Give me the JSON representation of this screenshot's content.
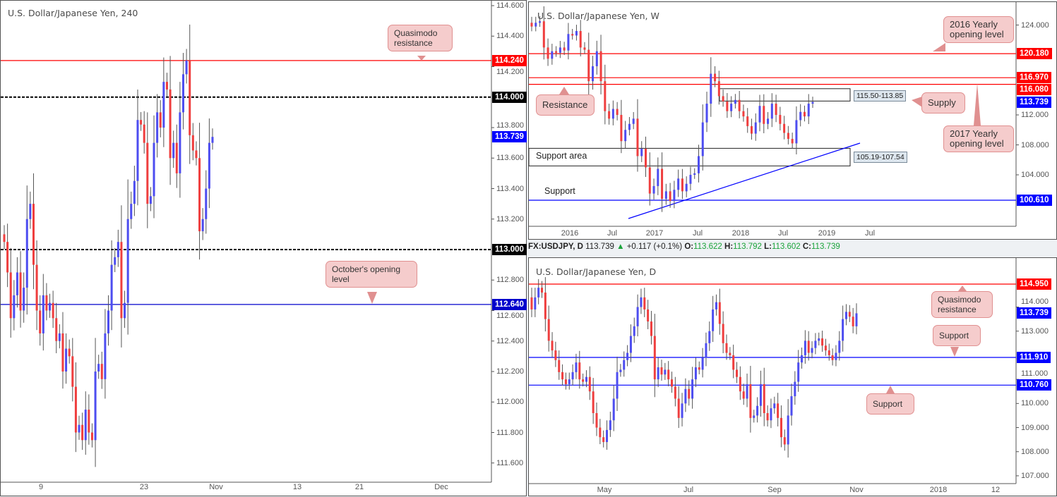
{
  "colors": {
    "up": "#4d4df0",
    "down": "#ef3e3e",
    "wick": "#555555",
    "resistance": "#ff0000",
    "support": "#0000ff",
    "level": "#000000",
    "callout_bg": "#f5cccc"
  },
  "chart_data": [
    {
      "type": "candlestick",
      "title": "U.S. Dollar/Japanese Yen, 240",
      "ylim": [
        111.5,
        114.62
      ],
      "y_ticks": [
        "114.600",
        "114.400",
        "114.200",
        "113.800",
        "113.600",
        "113.400",
        "113.200",
        "112.800",
        "112.600",
        "112.400",
        "112.200",
        "112.000",
        "111.800",
        "111.600"
      ],
      "x_ticks": [
        "9",
        "23",
        "Nov",
        "13",
        "21",
        "Dec"
      ],
      "closes": [
        113.05,
        112.85,
        112.55,
        112.7,
        112.85,
        112.6,
        112.75,
        113.2,
        113.3,
        112.9,
        112.6,
        112.45,
        112.7,
        112.6,
        112.65,
        112.55,
        112.4,
        112.45,
        112.2,
        112.35,
        112.3,
        112.1,
        111.8,
        111.85,
        111.75,
        111.95,
        111.8,
        111.75,
        112.2,
        112.25,
        112.15,
        112.45,
        112.6,
        112.9,
        112.95,
        113.05,
        112.55,
        112.65,
        113.2,
        113.3,
        113.45,
        113.85,
        113.82,
        113.7,
        113.3,
        113.35,
        113.7,
        113.9,
        113.8,
        114.1,
        114.05,
        113.6,
        113.7,
        113.5,
        113.9,
        114.15,
        114.24,
        113.75,
        113.65,
        113.6,
        113.12,
        113.2,
        113.4,
        113.7,
        113.739
      ],
      "levels": [
        {
          "value": 114.24,
          "label": "114.240",
          "style": "solid",
          "color": "#ff0000"
        },
        {
          "value": 114.0,
          "label": "114.000",
          "style": "dashed",
          "color": "#000000"
        },
        {
          "value": 113.739,
          "label": "113.739",
          "style": "none",
          "color": "#0000ff"
        },
        {
          "value": 113.0,
          "label": "113.000",
          "style": "dashed",
          "color": "#000000"
        },
        {
          "value": 112.64,
          "label": "112.640",
          "style": "solid",
          "color": "#0000cc"
        }
      ],
      "annotations": [
        "Quasimodo resistance",
        "October's opening level"
      ]
    },
    {
      "type": "candlestick",
      "title": "U.S. Dollar/Japanese Yen, W",
      "ylim": [
        96.6,
        127
      ],
      "y_ticks": [
        "124.000",
        "112.000",
        "108.000",
        "104.000"
      ],
      "x_ticks": [
        "2016",
        "Jul",
        "2017",
        "Jul",
        "2018",
        "Jul",
        "2019",
        "Jul"
      ],
      "closes": [
        123.8,
        124.3,
        124.5,
        121.0,
        119.5,
        120.5,
        120.3,
        121.0,
        120.6,
        122.8,
        122.6,
        123.2,
        121.0,
        120.7,
        116.5,
        118.5,
        120.5,
        116.5,
        112.5,
        111.5,
        112.8,
        112.0,
        108.5,
        110.0,
        110.8,
        111.5,
        106.5,
        107.5,
        105.0,
        101.5,
        102.5,
        104.8,
        100.8,
        101.8,
        100.5,
        102.0,
        103.5,
        101.8,
        102.8,
        104.0,
        104.2,
        106.5,
        111.0,
        113.5,
        117.5,
        116.5,
        114.5,
        113.8,
        112.5,
        113.5,
        114.0,
        112.5,
        111.8,
        110.5,
        109.5,
        111.0,
        113.2,
        110.8,
        111.5,
        113.5,
        112.0,
        110.8,
        109.6,
        108.8,
        108.2,
        111.3,
        112.4,
        111.8,
        113.5,
        113.739
      ],
      "levels": [
        {
          "value": 120.18,
          "label": "120.180",
          "style": "solid",
          "color": "#ff0000"
        },
        {
          "value": 116.97,
          "label": "116.970",
          "style": "solid",
          "color": "#ff0000"
        },
        {
          "value": 116.08,
          "label": "116.080",
          "style": "solid",
          "color": "#ff0000"
        },
        {
          "value": 113.739,
          "label": "113.739",
          "style": "none",
          "color": "#0000ff"
        },
        {
          "value": 100.61,
          "label": "100.610",
          "style": "solid",
          "color": "#0000ff"
        }
      ],
      "zones": [
        {
          "label": "115.50-113.85",
          "top": 115.5,
          "bottom": 113.85
        },
        {
          "label": "105.19-107.54",
          "top": 107.54,
          "bottom": 105.19
        }
      ],
      "annotations": [
        "2016 Yearly opening level",
        "2017 Yearly opening level",
        "Resistance",
        "Supply",
        "Support area",
        "Support"
      ]
    },
    {
      "type": "candlestick",
      "title": "U.S. Dollar/Japanese Yen, D",
      "ylim": [
        106.8,
        115.8
      ],
      "y_ticks": [
        "114.000",
        "113.000",
        "111.000",
        "110.000",
        "109.000",
        "108.000",
        "107.000"
      ],
      "x_ticks": [
        "May",
        "Jul",
        "Sep",
        "Nov",
        "2018",
        "12"
      ],
      "closes": [
        113.9,
        114.4,
        114.8,
        114.6,
        113.5,
        112.6,
        112.2,
        111.8,
        111.3,
        111.0,
        110.8,
        111.0,
        111.3,
        111.7,
        111.0,
        110.9,
        111.1,
        110.5,
        109.6,
        109.0,
        108.6,
        108.4,
        108.9,
        109.3,
        110.2,
        111.3,
        111.4,
        111.8,
        112.1,
        112.8,
        113.2,
        114.0,
        114.4,
        113.9,
        113.4,
        112.8,
        111.0,
        111.5,
        111.2,
        111.4,
        111.0,
        110.7,
        110.2,
        109.4,
        110.0,
        110.6,
        110.2,
        111.0,
        111.5,
        111.4,
        111.9,
        112.5,
        113.0,
        113.9,
        114.2,
        113.3,
        112.5,
        112.1,
        112.0,
        111.4,
        111.1,
        110.5,
        110.2,
        110.8,
        109.4,
        109.5,
        109.9,
        110.8,
        109.6,
        109.3,
        109.8,
        110.0,
        109.4,
        108.6,
        108.3,
        109.5,
        110.3,
        110.9,
        111.7,
        112.0,
        112.6,
        112.1,
        112.3,
        112.6,
        112.7,
        112.4,
        112.2,
        112.0,
        111.8,
        112.1,
        112.6,
        113.5,
        113.8,
        113.6,
        113.2,
        113.739
      ],
      "levels": [
        {
          "value": 114.95,
          "label": "114.950",
          "style": "solid",
          "color": "#ff0000"
        },
        {
          "value": 113.739,
          "label": "113.739",
          "style": "none",
          "color": "#0000ff"
        },
        {
          "value": 111.91,
          "label": "111.910",
          "style": "solid",
          "color": "#0000ff"
        },
        {
          "value": 110.76,
          "label": "110.760",
          "style": "solid",
          "color": "#0000ff"
        }
      ],
      "annotations": [
        "Quasimodo resistance",
        "Support",
        "Support"
      ]
    }
  ],
  "quote_bar": {
    "symbol": "FX:USDJPY, D",
    "last": "113.739",
    "arrow": "▲",
    "change": "+0.117 (+0.1%)",
    "o_label": "O:",
    "o": "113.622",
    "h_label": "H:",
    "h": "113.792",
    "l_label": "L:",
    "l": "113.602",
    "c_label": "C:",
    "c": "113.739"
  }
}
